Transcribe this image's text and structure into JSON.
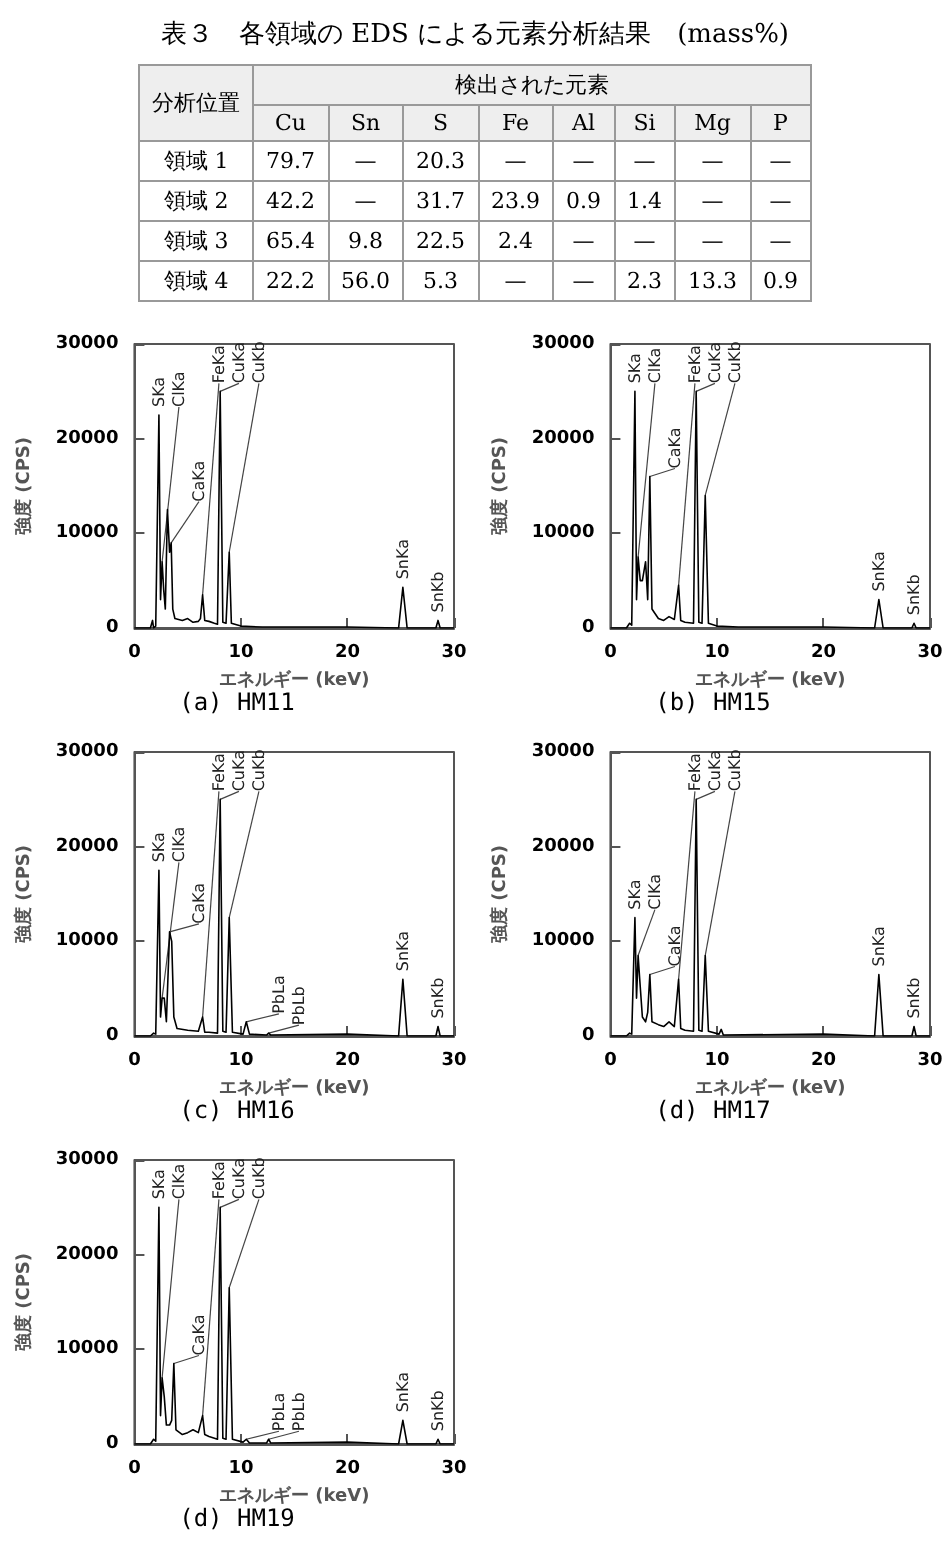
{
  "chart_data": [
    {
      "type": "other",
      "title": "表３　各領域の EDS による元素分析結果　(mass%)",
      "xlabel": "検出された元素",
      "ylabel": "分析位置",
      "categories": [
        "Cu",
        "Sn",
        "S",
        "Fe",
        "Al",
        "Si",
        "Mg",
        "P"
      ],
      "y_categories": [
        "領域 1",
        "領域 2",
        "領域 3",
        "領域 4"
      ],
      "cell_labels": [
        [
          "79.7",
          "—",
          "20.3",
          "—",
          "—",
          "—",
          "—",
          "—"
        ],
        [
          "42.2",
          "—",
          "31.7",
          "23.9",
          "0.9",
          "1.4",
          "—",
          "—"
        ],
        [
          "65.4",
          "9.8",
          "22.5",
          "2.4",
          "—",
          "—",
          "—",
          "—"
        ],
        [
          "22.2",
          "56.0",
          "5.3",
          "—",
          "—",
          "2.3",
          "13.3",
          "0.9"
        ]
      ]
    },
    {
      "type": "line",
      "title": "(a) HM11",
      "xlabel": "エネルギー (keV)",
      "ylabel": "強度 (CPS)",
      "color": "#000000",
      "grid": false,
      "marker": "none",
      "xlim": [
        0,
        30
      ],
      "xticks": [
        0,
        10,
        20,
        30
      ],
      "ylim": [
        0,
        30000
      ],
      "yticks": [
        0,
        10000,
        20000,
        30000
      ],
      "x": [
        0,
        1.5,
        1.7,
        1.8,
        2.0,
        2.3,
        2.45,
        2.6,
        2.75,
        2.9,
        3.1,
        3.3,
        3.45,
        3.6,
        3.8,
        4.5,
        5.0,
        5.5,
        6.0,
        6.2,
        6.4,
        6.6,
        7.0,
        7.5,
        7.8,
        8.05,
        8.3,
        8.6,
        8.9,
        9.1,
        10,
        12,
        20,
        24.8,
        25.2,
        25.6,
        28.3,
        28.5,
        28.7,
        30
      ],
      "values": [
        0,
        0,
        800,
        0,
        200,
        22500,
        3000,
        7000,
        4000,
        2000,
        12500,
        8000,
        9000,
        2000,
        1000,
        800,
        1000,
        600,
        700,
        1000,
        3500,
        800,
        700,
        500,
        400,
        25000,
        600,
        500,
        8000,
        500,
        200,
        100,
        100,
        0,
        4300,
        0,
        0,
        800,
        0,
        0
      ],
      "annotations": [
        {
          "text": "SKa",
          "x": 2.3,
          "y": 22500
        },
        {
          "text": "ClKa",
          "x": 2.6,
          "y": 7000
        },
        {
          "text": "CaKa",
          "x": 3.45,
          "y": 9000
        },
        {
          "text": "FeKa",
          "x": 6.4,
          "y": 3500
        },
        {
          "text": "CuKa",
          "x": 8.05,
          "y": 25000
        },
        {
          "text": "CuKb",
          "x": 8.9,
          "y": 8000
        },
        {
          "text": "SnKa",
          "x": 25.2,
          "y": 4300
        },
        {
          "text": "SnKb",
          "x": 28.5,
          "y": 800
        }
      ]
    },
    {
      "type": "line",
      "title": "(b) HM15",
      "xlabel": "エネルギー (keV)",
      "ylabel": "強度 (CPS)",
      "color": "#000000",
      "grid": false,
      "marker": "none",
      "xlim": [
        0,
        30
      ],
      "xticks": [
        0,
        10,
        20,
        30
      ],
      "ylim": [
        0,
        30000
      ],
      "yticks": [
        0,
        10000,
        20000,
        30000
      ],
      "x": [
        0,
        1.5,
        1.8,
        2.0,
        2.3,
        2.45,
        2.6,
        2.8,
        3.0,
        3.3,
        3.5,
        3.7,
        3.9,
        4.5,
        5.0,
        5.5,
        6.0,
        6.4,
        6.6,
        7.0,
        7.8,
        8.05,
        8.3,
        8.6,
        8.9,
        9.2,
        10,
        12,
        20,
        24.8,
        25.2,
        25.6,
        28.3,
        28.5,
        28.7,
        30
      ],
      "values": [
        0,
        0,
        500,
        300,
        25000,
        3000,
        7500,
        5000,
        5000,
        7000,
        3000,
        16000,
        2000,
        1000,
        800,
        1200,
        900,
        4500,
        800,
        600,
        500,
        25000,
        600,
        500,
        14000,
        500,
        200,
        100,
        100,
        0,
        3000,
        0,
        0,
        500,
        0,
        0
      ],
      "annotations": [
        {
          "text": "SKa",
          "x": 2.3,
          "y": 25000
        },
        {
          "text": "ClKa",
          "x": 2.6,
          "y": 7500
        },
        {
          "text": "CaKa",
          "x": 3.7,
          "y": 16000
        },
        {
          "text": "FeKa",
          "x": 6.4,
          "y": 4500
        },
        {
          "text": "CuKa",
          "x": 8.05,
          "y": 25000
        },
        {
          "text": "CuKb",
          "x": 8.9,
          "y": 14000
        },
        {
          "text": "SnKa",
          "x": 25.2,
          "y": 3000
        },
        {
          "text": "SnKb",
          "x": 28.5,
          "y": 500
        }
      ]
    },
    {
      "type": "line",
      "title": "(c) HM16",
      "xlabel": "エネルギー (keV)",
      "ylabel": "強度 (CPS)",
      "color": "#000000",
      "grid": false,
      "marker": "none",
      "xlim": [
        0,
        30
      ],
      "xticks": [
        0,
        10,
        20,
        30
      ],
      "ylim": [
        0,
        30000
      ],
      "yticks": [
        0,
        10000,
        20000,
        30000
      ],
      "x": [
        0,
        1.5,
        1.8,
        2.0,
        2.3,
        2.45,
        2.6,
        2.8,
        3.0,
        3.3,
        3.5,
        3.7,
        4.0,
        5.0,
        6.0,
        6.4,
        6.6,
        7.0,
        7.8,
        8.05,
        8.3,
        8.6,
        8.9,
        9.2,
        10.2,
        10.5,
        10.8,
        12.4,
        12.6,
        12.8,
        20,
        24.8,
        25.2,
        25.6,
        28.3,
        28.5,
        28.7,
        30
      ],
      "values": [
        0,
        0,
        300,
        200,
        17500,
        2000,
        4000,
        4000,
        1500,
        11000,
        10000,
        2000,
        800,
        600,
        500,
        2000,
        400,
        400,
        300,
        25000,
        500,
        400,
        12500,
        400,
        200,
        1500,
        200,
        100,
        300,
        100,
        200,
        0,
        6000,
        0,
        0,
        1000,
        0,
        0
      ],
      "annotations": [
        {
          "text": "SKa",
          "x": 2.3,
          "y": 17500
        },
        {
          "text": "ClKa",
          "x": 2.6,
          "y": 4000
        },
        {
          "text": "CaKa",
          "x": 3.3,
          "y": 11000
        },
        {
          "text": "FeKa",
          "x": 6.4,
          "y": 2000
        },
        {
          "text": "CuKa",
          "x": 8.05,
          "y": 25000
        },
        {
          "text": "CuKb",
          "x": 8.9,
          "y": 12500
        },
        {
          "text": "PbLa",
          "x": 10.5,
          "y": 1500
        },
        {
          "text": "PbLb",
          "x": 12.6,
          "y": 300
        },
        {
          "text": "SnKa",
          "x": 25.2,
          "y": 6000
        },
        {
          "text": "SnKb",
          "x": 28.5,
          "y": 1000
        }
      ]
    },
    {
      "type": "line",
      "title": "(d) HM17",
      "xlabel": "エネルギー (keV)",
      "ylabel": "強度 (CPS)",
      "color": "#000000",
      "grid": false,
      "marker": "none",
      "xlim": [
        0,
        30
      ],
      "xticks": [
        0,
        10,
        20,
        30
      ],
      "ylim": [
        0,
        30000
      ],
      "yticks": [
        0,
        10000,
        20000,
        30000
      ],
      "x": [
        0,
        1.5,
        1.8,
        2.0,
        2.3,
        2.45,
        2.6,
        2.75,
        3.0,
        3.3,
        3.5,
        3.7,
        3.9,
        4.5,
        5.0,
        5.5,
        6.0,
        6.4,
        6.6,
        7.0,
        7.8,
        8.05,
        8.3,
        8.6,
        8.9,
        9.2,
        10.2,
        10.4,
        10.6,
        20,
        24.8,
        25.2,
        25.6,
        28.3,
        28.5,
        28.7,
        30
      ],
      "values": [
        0,
        0,
        300,
        200,
        12500,
        4000,
        8500,
        6000,
        2000,
        1500,
        2500,
        6500,
        1500,
        1200,
        1000,
        1500,
        1000,
        6000,
        800,
        600,
        500,
        25000,
        600,
        500,
        8500,
        500,
        200,
        700,
        100,
        200,
        0,
        6500,
        0,
        0,
        1000,
        0,
        0
      ],
      "annotations": [
        {
          "text": "SKa",
          "x": 2.3,
          "y": 12500
        },
        {
          "text": "ClKa",
          "x": 2.6,
          "y": 8500
        },
        {
          "text": "CaKa",
          "x": 3.7,
          "y": 6500
        },
        {
          "text": "FeKa",
          "x": 6.4,
          "y": 6000
        },
        {
          "text": "CuKa",
          "x": 8.05,
          "y": 25000
        },
        {
          "text": "CuKb",
          "x": 8.9,
          "y": 8500
        },
        {
          "text": "SnKa",
          "x": 25.2,
          "y": 6500
        },
        {
          "text": "SnKb",
          "x": 28.5,
          "y": 1000
        }
      ]
    },
    {
      "type": "line",
      "title": "(d) HM19",
      "xlabel": "エネルギー (keV)",
      "ylabel": "強度 (CPS)",
      "color": "#000000",
      "grid": false,
      "marker": "none",
      "xlim": [
        0,
        30
      ],
      "xticks": [
        0,
        10,
        20,
        30
      ],
      "ylim": [
        0,
        30000
      ],
      "yticks": [
        0,
        10000,
        20000,
        30000
      ],
      "x": [
        0,
        1.5,
        1.8,
        2.0,
        2.3,
        2.45,
        2.6,
        2.8,
        3.0,
        3.3,
        3.5,
        3.7,
        3.9,
        4.5,
        5.0,
        5.5,
        6.0,
        6.4,
        6.6,
        7.0,
        7.8,
        8.05,
        8.3,
        8.6,
        8.9,
        9.2,
        10.2,
        10.5,
        10.8,
        12.4,
        12.6,
        12.8,
        20,
        24.8,
        25.2,
        25.6,
        28.3,
        28.5,
        28.7,
        30
      ],
      "values": [
        0,
        0,
        500,
        300,
        25000,
        3000,
        7000,
        5000,
        2000,
        2000,
        2500,
        8500,
        1500,
        1000,
        1200,
        1500,
        1200,
        3000,
        1000,
        800,
        500,
        25000,
        600,
        500,
        16500,
        500,
        200,
        500,
        100,
        100,
        500,
        100,
        200,
        0,
        2500,
        0,
        0,
        500,
        0,
        0
      ],
      "annotations": [
        {
          "text": "SKa",
          "x": 2.3,
          "y": 25000
        },
        {
          "text": "ClKa",
          "x": 2.6,
          "y": 7000
        },
        {
          "text": "CaKa",
          "x": 3.7,
          "y": 8500
        },
        {
          "text": "FeKa",
          "x": 6.4,
          "y": 3000
        },
        {
          "text": "CuKa",
          "x": 8.05,
          "y": 25000
        },
        {
          "text": "CuKb",
          "x": 8.9,
          "y": 16500
        },
        {
          "text": "PbLa",
          "x": 10.5,
          "y": 500
        },
        {
          "text": "PbLb",
          "x": 12.6,
          "y": 500
        },
        {
          "text": "SnKa",
          "x": 25.2,
          "y": 2500
        },
        {
          "text": "SnKb",
          "x": 28.5,
          "y": 500
        }
      ]
    }
  ]
}
